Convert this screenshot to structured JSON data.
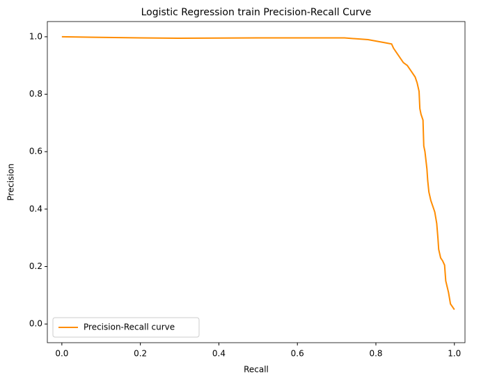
{
  "chart_data": {
    "type": "line",
    "title": "Logistic Regression train Precision-Recall Curve",
    "xlabel": "Recall",
    "ylabel": "Precision",
    "x": [
      0,
      0.1,
      0.2,
      0.3,
      0.5,
      0.72,
      0.78,
      0.82,
      0.84,
      0.845,
      0.855,
      0.86,
      0.87,
      0.88,
      0.89,
      0.9,
      0.905,
      0.91,
      0.912,
      0.915,
      0.92,
      0.922,
      0.925,
      0.93,
      0.932,
      0.935,
      0.94,
      0.945,
      0.95,
      0.955,
      0.958,
      0.96,
      0.965,
      0.97,
      0.975,
      0.978,
      0.985,
      0.99,
      0.995,
      1.0
    ],
    "series": [
      {
        "name": "Precision-Recall curve",
        "color": "#ff8c00",
        "values": [
          1.0,
          0.998,
          0.996,
          0.995,
          0.996,
          0.996,
          0.99,
          0.98,
          0.975,
          0.96,
          0.94,
          0.93,
          0.91,
          0.9,
          0.88,
          0.86,
          0.84,
          0.81,
          0.75,
          0.73,
          0.71,
          0.62,
          0.6,
          0.54,
          0.5,
          0.46,
          0.43,
          0.41,
          0.39,
          0.35,
          0.3,
          0.26,
          0.23,
          0.22,
          0.205,
          0.15,
          0.11,
          0.07,
          0.06,
          0.05
        ]
      }
    ],
    "xlim": [
      -0.037,
      1.027
    ],
    "ylim": [
      -0.065,
      1.053
    ],
    "xticks": [
      {
        "value": 0,
        "label": "0.0"
      },
      {
        "value": 0.2,
        "label": "0.2"
      },
      {
        "value": 0.4,
        "label": "0.4"
      },
      {
        "value": 0.6,
        "label": "0.6"
      },
      {
        "value": 0.8,
        "label": "0.8"
      },
      {
        "value": 1,
        "label": "1.0"
      }
    ],
    "yticks": [
      {
        "value": 0,
        "label": "0.0"
      },
      {
        "value": 0.2,
        "label": "0.2"
      },
      {
        "value": 0.4,
        "label": "0.4"
      },
      {
        "value": 0.6,
        "label": "0.6"
      },
      {
        "value": 0.8,
        "label": "0.8"
      },
      {
        "value": 1,
        "label": "1.0"
      }
    ],
    "legend": "lower left"
  }
}
